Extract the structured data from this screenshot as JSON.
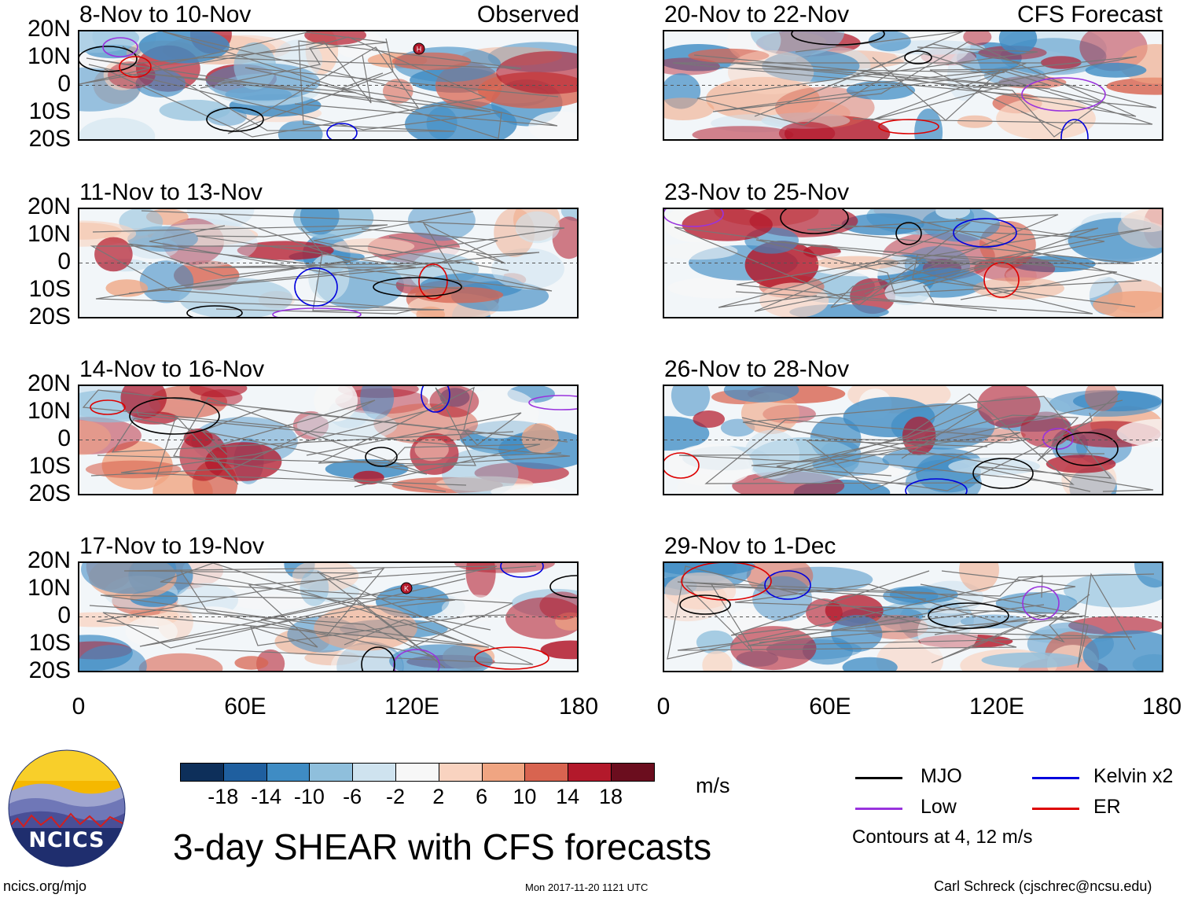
{
  "header": {
    "left_label": "Observed",
    "right_label": "CFS Forecast"
  },
  "observed_panels": [
    {
      "title": "8-Nov to 10-Nov"
    },
    {
      "title": "11-Nov to 13-Nov"
    },
    {
      "title": "14-Nov to 16-Nov"
    },
    {
      "title": "17-Nov to 19-Nov"
    }
  ],
  "forecast_panels": [
    {
      "title": "20-Nov to 22-Nov"
    },
    {
      "title": "23-Nov to 25-Nov"
    },
    {
      "title": "26-Nov to 28-Nov"
    },
    {
      "title": "29-Nov to 1-Dec"
    }
  ],
  "lat_labels": [
    "20N",
    "10N",
    "0",
    "10S",
    "20S"
  ],
  "lon_labels": [
    "0",
    "60E",
    "120E",
    "180"
  ],
  "storm_markers": [
    {
      "panel": "8-Nov to 10-Nov",
      "letter": "H"
    },
    {
      "panel": "17-Nov to 19-Nov",
      "letter": "K"
    }
  ],
  "colorbar": {
    "unit": "m/s",
    "ticks": [
      "-18",
      "-14",
      "-10",
      "-6",
      "-2",
      "2",
      "6",
      "10",
      "14",
      "18"
    ],
    "colors": [
      "#0d2f5a",
      "#1f5f9f",
      "#3f8cc4",
      "#8fbfdc",
      "#cfe3ef",
      "#f7f7f7",
      "#f9d3c0",
      "#f0a582",
      "#d86450",
      "#b3192b",
      "#6b0d1e"
    ]
  },
  "legend": {
    "items": [
      {
        "label": "MJO",
        "color": "#000000"
      },
      {
        "label": "Kelvin x2",
        "color": "#0000dd"
      },
      {
        "label": "Low",
        "color": "#9933dd"
      },
      {
        "label": "ER",
        "color": "#dd0000"
      }
    ],
    "note": "Contours at 4, 12 m/s"
  },
  "title": "3-day SHEAR with CFS forecasts",
  "logo_text": "NCICS",
  "footer": {
    "left": "ncics.org/mjo",
    "center": "Mon 2017-11-20 1121 UTC",
    "right": "Carl Schreck (cjschrec@ncsu.edu)"
  }
}
